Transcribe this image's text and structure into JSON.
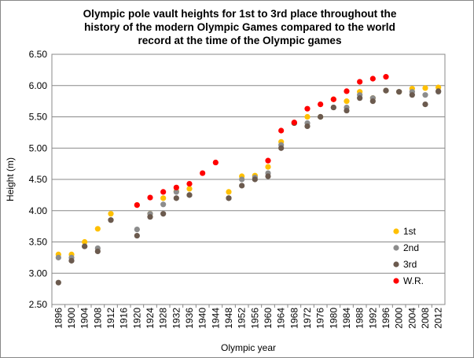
{
  "chart_data": {
    "type": "scatter",
    "title_lines": [
      "Olympic  pole vault heights for 1st to 3rd place throughout the",
      "history  of the modern Olympic  Games compared to the world",
      "record at the time of the Olympic  games"
    ],
    "xlabel": "Olympic year",
    "ylabel": "Height (m)",
    "categories": [
      "1896",
      "1900",
      "1904",
      "1908",
      "1912",
      "1916",
      "1920",
      "1924",
      "1928",
      "1932",
      "1936",
      "1940",
      "1944",
      "1948",
      "1952",
      "1956",
      "1960",
      "1964",
      "1968",
      "1972",
      "1976",
      "1980",
      "1984",
      "1988",
      "1992",
      "1996",
      "2000",
      "2004",
      "2008",
      "2012"
    ],
    "yticks": [
      "2.50",
      "3.00",
      "3.50",
      "4.00",
      "4.50",
      "5.00",
      "5.50",
      "6.00",
      "6.50"
    ],
    "ylim": [
      2.5,
      6.5
    ],
    "grid": true,
    "legend_position": "right",
    "series": [
      {
        "name": "1st",
        "color": "#FFC000",
        "values": [
          3.3,
          3.3,
          3.5,
          3.71,
          3.95,
          null,
          4.09,
          3.95,
          4.2,
          4.31,
          4.35,
          null,
          null,
          4.3,
          4.55,
          4.56,
          4.7,
          5.1,
          5.4,
          5.5,
          5.5,
          5.78,
          5.75,
          5.9,
          5.8,
          5.92,
          5.9,
          5.95,
          5.96,
          5.97
        ]
      },
      {
        "name": "2nd",
        "color": "#8C8C8C",
        "values": [
          3.25,
          3.25,
          3.43,
          3.4,
          3.85,
          null,
          3.7,
          3.95,
          4.1,
          4.3,
          4.25,
          null,
          null,
          4.2,
          4.5,
          4.53,
          4.6,
          5.05,
          5.4,
          5.4,
          5.5,
          5.65,
          5.65,
          5.85,
          5.8,
          5.92,
          5.9,
          5.9,
          5.85,
          5.9
        ]
      },
      {
        "name": "3rd",
        "color": "#6B5A4E",
        "values": [
          2.85,
          3.2,
          3.43,
          3.35,
          3.85,
          null,
          3.6,
          3.9,
          3.95,
          4.2,
          4.25,
          null,
          null,
          4.2,
          4.4,
          4.5,
          4.55,
          5.0,
          5.4,
          5.35,
          5.5,
          5.65,
          5.6,
          5.8,
          5.75,
          5.92,
          5.9,
          5.85,
          5.7,
          5.91
        ]
      },
      {
        "name": "W.R.",
        "color": "#FF0000",
        "values": [
          null,
          null,
          null,
          null,
          null,
          null,
          4.09,
          4.21,
          4.3,
          4.37,
          4.43,
          4.6,
          4.77,
          null,
          null,
          null,
          4.8,
          5.28,
          5.41,
          5.63,
          5.7,
          5.78,
          5.91,
          6.06,
          6.11,
          6.14,
          null,
          null,
          null,
          null
        ]
      }
    ]
  }
}
